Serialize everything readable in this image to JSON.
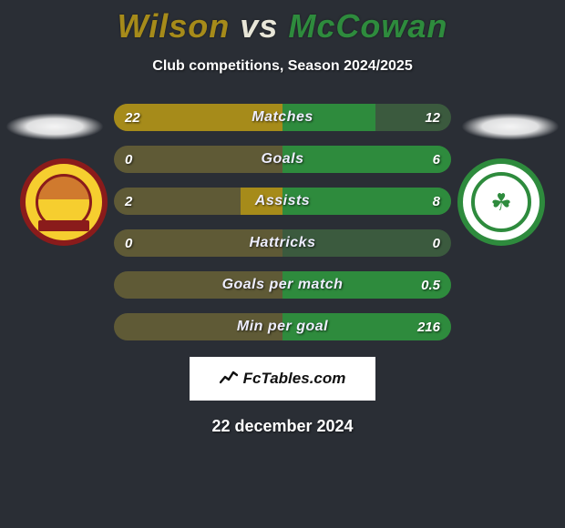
{
  "title": {
    "player1": "Wilson",
    "vs": "vs",
    "player2": "McCowan",
    "player1_color": "#a68b1a",
    "vs_color": "#e8e6d8",
    "player2_color": "#2e8b3d"
  },
  "subtitle": "Club competitions, Season 2024/2025",
  "background_color": "#2a2e35",
  "left_team": {
    "ring_color": "#8a1b1b",
    "fill_color": "#f6ce2f"
  },
  "right_team": {
    "ring_color": "#2e8b3d",
    "fill_color": "#ffffff"
  },
  "bars": {
    "left_fill_color": "#a68b1a",
    "left_track_color": "#5f5a36",
    "right_fill_color": "#2e8b3d",
    "right_track_color": "#3b5a3e",
    "rows": [
      {
        "label": "Matches",
        "left": "22",
        "right": "12",
        "left_pct": 100,
        "right_pct": 55
      },
      {
        "label": "Goals",
        "left": "0",
        "right": "6",
        "left_pct": 0,
        "right_pct": 100
      },
      {
        "label": "Assists",
        "left": "2",
        "right": "8",
        "left_pct": 25,
        "right_pct": 100
      },
      {
        "label": "Hattricks",
        "left": "0",
        "right": "0",
        "left_pct": 0,
        "right_pct": 0
      },
      {
        "label": "Goals per match",
        "left": "",
        "right": "0.5",
        "left_pct": 0,
        "right_pct": 100
      },
      {
        "label": "Min per goal",
        "left": "",
        "right": "216",
        "left_pct": 0,
        "right_pct": 100
      }
    ]
  },
  "branding": {
    "text": "FcTables.com",
    "background": "#ffffff",
    "color": "#111111"
  },
  "date": "22 december 2024"
}
